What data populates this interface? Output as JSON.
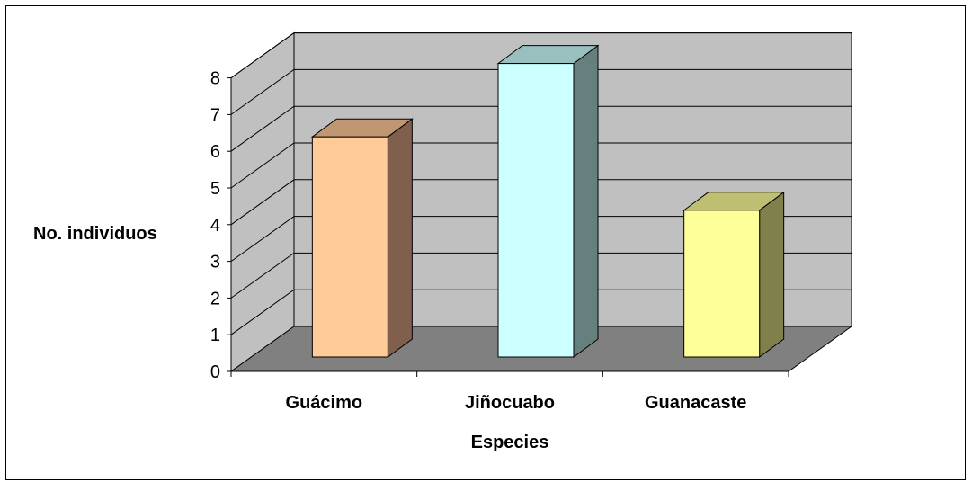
{
  "chart_data": {
    "type": "bar",
    "style": "3d-column",
    "categories": [
      "Guácimo",
      "Jiñocuabo",
      "Guanacaste"
    ],
    "values": [
      6,
      8,
      4
    ],
    "xlabel": "Especies",
    "ylabel": "No. individuos",
    "ylim": [
      0,
      8
    ],
    "yticks": [
      "0",
      "1",
      "2",
      "3",
      "4",
      "5",
      "6",
      "7",
      "8"
    ],
    "grid": true,
    "legend": "none",
    "colors": {
      "wall": "#c0c0c0",
      "side_wall": "#c0c0c0",
      "floor": "#808080",
      "bar_fronts": [
        "#ffcc99",
        "#ccffff",
        "#ffff99"
      ],
      "bar_tops": [
        "#c09673",
        "#99bfbf",
        "#bfbf73"
      ],
      "bar_sides": [
        "#805f4c",
        "#668080",
        "#80804c"
      ]
    }
  }
}
